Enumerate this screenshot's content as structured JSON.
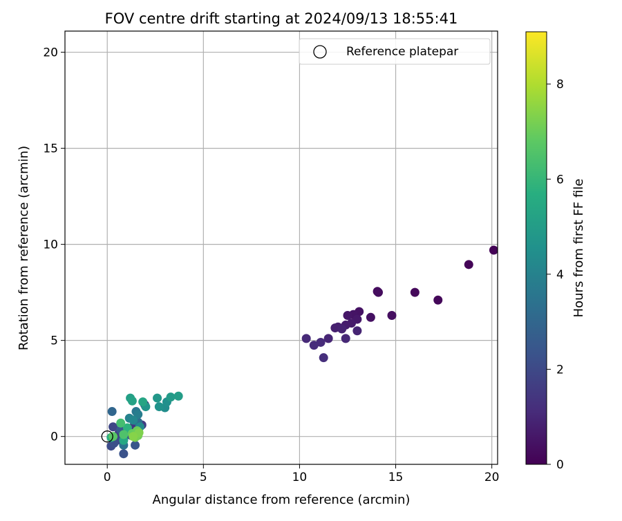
{
  "chart_data": {
    "type": "scatter",
    "title": "FOV centre drift starting at 2024/09/13 18:55:41",
    "xlabel": "Angular distance from reference (arcmin)",
    "ylabel": "Rotation from reference (arcmin)",
    "xlim": [
      -2.2,
      20.3
    ],
    "ylim": [
      -1.45,
      21.1
    ],
    "xticks": [
      "0",
      "5",
      "10",
      "15",
      "20"
    ],
    "yticks": [
      "0",
      "5",
      "10",
      "15",
      "20"
    ],
    "xtick_values": [
      0,
      5,
      10,
      15,
      20
    ],
    "ytick_values": [
      0,
      5,
      10,
      15,
      20
    ],
    "grid": true,
    "legend": {
      "placement": "top-right",
      "entries": [
        "Reference platepar"
      ]
    },
    "colorbar": {
      "label": "Hours from first FF file",
      "colormap": "viridis",
      "range": [
        0,
        9.1
      ],
      "ticks": [
        "0",
        "2",
        "4",
        "6",
        "8"
      ],
      "tick_values": [
        0,
        2,
        4,
        6,
        8
      ]
    },
    "reference_point": {
      "x": 0,
      "y": 0
    },
    "points": [
      {
        "x": 20.1,
        "y": 9.7,
        "h": 0.05
      },
      {
        "x": 18.8,
        "y": 8.95,
        "h": 0.1
      },
      {
        "x": 17.2,
        "y": 7.1,
        "h": 0.15
      },
      {
        "x": 16.0,
        "y": 7.5,
        "h": 0.2
      },
      {
        "x": 14.05,
        "y": 7.55,
        "h": 0.25
      },
      {
        "x": 14.1,
        "y": 7.5,
        "h": 0.3
      },
      {
        "x": 14.8,
        "y": 6.3,
        "h": 0.35
      },
      {
        "x": 13.7,
        "y": 6.2,
        "h": 0.4
      },
      {
        "x": 13.1,
        "y": 6.5,
        "h": 0.45
      },
      {
        "x": 12.8,
        "y": 6.35,
        "h": 0.5
      },
      {
        "x": 12.5,
        "y": 6.3,
        "h": 0.55
      },
      {
        "x": 13.0,
        "y": 6.1,
        "h": 0.6
      },
      {
        "x": 12.7,
        "y": 5.9,
        "h": 0.65
      },
      {
        "x": 12.4,
        "y": 5.8,
        "h": 0.7
      },
      {
        "x": 12.0,
        "y": 5.7,
        "h": 0.75
      },
      {
        "x": 11.85,
        "y": 5.65,
        "h": 0.8
      },
      {
        "x": 12.2,
        "y": 5.6,
        "h": 0.85
      },
      {
        "x": 13.0,
        "y": 5.5,
        "h": 0.9
      },
      {
        "x": 11.5,
        "y": 5.1,
        "h": 0.95
      },
      {
        "x": 12.4,
        "y": 5.1,
        "h": 1.0
      },
      {
        "x": 10.35,
        "y": 5.1,
        "h": 1.05
      },
      {
        "x": 11.1,
        "y": 4.9,
        "h": 1.1
      },
      {
        "x": 10.75,
        "y": 4.75,
        "h": 1.15
      },
      {
        "x": 11.25,
        "y": 4.1,
        "h": 1.2
      },
      {
        "x": 1.95,
        "y": 1.65,
        "h": 1.3
      },
      {
        "x": 1.35,
        "y": 0.5,
        "h": 1.4
      },
      {
        "x": 1.0,
        "y": 0.3,
        "h": 1.5
      },
      {
        "x": 1.8,
        "y": 0.6,
        "h": 1.6
      },
      {
        "x": 0.6,
        "y": 0.15,
        "h": 1.7
      },
      {
        "x": 0.9,
        "y": 0.0,
        "h": 1.8
      },
      {
        "x": 0.3,
        "y": 0.5,
        "h": 1.9
      },
      {
        "x": 0.5,
        "y": -0.2,
        "h": 2.0
      },
      {
        "x": 0.2,
        "y": -0.5,
        "h": 2.1
      },
      {
        "x": 0.35,
        "y": -0.35,
        "h": 2.2
      },
      {
        "x": 0.85,
        "y": -0.9,
        "h": 2.3
      },
      {
        "x": 1.45,
        "y": -0.45,
        "h": 2.4
      },
      {
        "x": 1.25,
        "y": 0.05,
        "h": 2.5
      },
      {
        "x": 0.7,
        "y": 0.35,
        "h": 2.6
      },
      {
        "x": 1.1,
        "y": 0.2,
        "h": 2.8
      },
      {
        "x": 0.25,
        "y": 1.3,
        "h": 3.0
      },
      {
        "x": 1.6,
        "y": 0.75,
        "h": 3.2
      },
      {
        "x": 0.85,
        "y": -0.45,
        "h": 3.4
      },
      {
        "x": 1.5,
        "y": 1.3,
        "h": 3.6
      },
      {
        "x": 1.6,
        "y": 1.15,
        "h": 3.8
      },
      {
        "x": 1.15,
        "y": 0.95,
        "h": 4.0
      },
      {
        "x": 1.35,
        "y": 0.85,
        "h": 4.2
      },
      {
        "x": 1.7,
        "y": 0.5,
        "h": 4.3
      },
      {
        "x": 3.0,
        "y": 1.5,
        "h": 4.4
      },
      {
        "x": 3.1,
        "y": 1.8,
        "h": 4.5
      },
      {
        "x": 2.7,
        "y": 1.55,
        "h": 4.6
      },
      {
        "x": 2.0,
        "y": 1.55,
        "h": 4.7
      },
      {
        "x": 2.6,
        "y": 2.0,
        "h": 4.8
      },
      {
        "x": 3.3,
        "y": 2.05,
        "h": 4.9
      },
      {
        "x": 3.7,
        "y": 2.1,
        "h": 5.0
      },
      {
        "x": 1.2,
        "y": 2.0,
        "h": 5.1
      },
      {
        "x": 1.3,
        "y": 1.85,
        "h": 5.2
      },
      {
        "x": 1.85,
        "y": 1.8,
        "h": 5.3
      },
      {
        "x": 0.85,
        "y": -0.2,
        "h": 5.4
      },
      {
        "x": 0.2,
        "y": -0.05,
        "h": 5.6
      },
      {
        "x": 1.05,
        "y": 0.45,
        "h": 5.8
      },
      {
        "x": 0.7,
        "y": 0.7,
        "h": 6.3
      },
      {
        "x": 0.85,
        "y": 0.1,
        "h": 6.5
      },
      {
        "x": 0.3,
        "y": 0.0,
        "h": 6.7
      },
      {
        "x": 1.3,
        "y": 0.15,
        "h": 6.9
      },
      {
        "x": 1.55,
        "y": 0.3,
        "h": 7.0
      },
      {
        "x": 1.6,
        "y": 0.05,
        "h": 7.1
      },
      {
        "x": 1.45,
        "y": -0.05,
        "h": 7.2
      },
      {
        "x": 1.65,
        "y": 0.2,
        "h": 7.3
      },
      {
        "x": 1.35,
        "y": 0.0,
        "h": 7.4
      }
    ]
  }
}
